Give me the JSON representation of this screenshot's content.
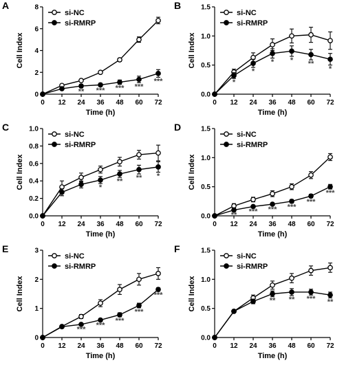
{
  "figure": {
    "panels": [
      {
        "id": "A",
        "label": "A"
      },
      {
        "id": "B",
        "label": "B"
      },
      {
        "id": "C",
        "label": "C"
      },
      {
        "id": "D",
        "label": "D"
      },
      {
        "id": "E",
        "label": "E"
      },
      {
        "id": "F",
        "label": "F"
      }
    ]
  },
  "chart_data": [
    {
      "panel": "A",
      "type": "line",
      "xlabel": "Time (h)",
      "ylabel": "Cell Index",
      "xlim": [
        0,
        72
      ],
      "ylim": [
        0,
        8
      ],
      "xticks": [
        0,
        12,
        24,
        36,
        48,
        60,
        72
      ],
      "yticks": [
        0,
        2,
        4,
        6,
        8
      ],
      "legend": "top-left",
      "x": [
        0,
        12,
        24,
        36,
        48,
        60,
        72
      ],
      "series": [
        {
          "name": "si-NC",
          "marker": "open-circle",
          "values": [
            0,
            0.8,
            1.25,
            2.0,
            3.15,
            5.0,
            6.75
          ],
          "err": [
            0,
            0.1,
            0.1,
            0.1,
            0.15,
            0.25,
            0.3
          ]
        },
        {
          "name": "si-RMRP",
          "marker": "filled-circle",
          "values": [
            0,
            0.5,
            0.75,
            0.85,
            1.1,
            1.35,
            1.9
          ],
          "err": [
            0,
            0.1,
            0.15,
            0.15,
            0.2,
            0.3,
            0.35
          ]
        }
      ],
      "annotations": [
        {
          "x": 24,
          "text": "**"
        },
        {
          "x": 36,
          "text": "***"
        },
        {
          "x": 48,
          "text": "***"
        },
        {
          "x": 60,
          "text": "***"
        },
        {
          "x": 72,
          "text": "***"
        }
      ]
    },
    {
      "panel": "B",
      "type": "line",
      "xlabel": "Time (h)",
      "ylabel": "Cell Index",
      "xlim": [
        0,
        72
      ],
      "ylim": [
        0,
        1.5
      ],
      "xticks": [
        0,
        12,
        24,
        36,
        48,
        60,
        72
      ],
      "yticks": [
        0.0,
        0.5,
        1.0,
        1.5
      ],
      "legend": "top-left",
      "x": [
        0,
        12,
        24,
        36,
        48,
        60,
        72
      ],
      "series": [
        {
          "name": "si-NC",
          "marker": "open-circle",
          "values": [
            0,
            0.38,
            0.63,
            0.85,
            1.0,
            1.02,
            0.92
          ],
          "err": [
            0,
            0.05,
            0.08,
            0.1,
            0.12,
            0.13,
            0.15
          ]
        },
        {
          "name": "si-RMRP",
          "marker": "filled-circle",
          "values": [
            0,
            0.32,
            0.53,
            0.7,
            0.74,
            0.68,
            0.6
          ],
          "err": [
            0,
            0.05,
            0.07,
            0.08,
            0.09,
            0.09,
            0.1
          ]
        }
      ],
      "annotations": [
        {
          "x": 12,
          "text": "*"
        },
        {
          "x": 24,
          "text": "*"
        },
        {
          "x": 36,
          "text": "*"
        },
        {
          "x": 48,
          "text": "*"
        },
        {
          "x": 60,
          "text": "**"
        },
        {
          "x": 72,
          "text": "*"
        }
      ]
    },
    {
      "panel": "C",
      "type": "line",
      "xlabel": "Time (h)",
      "ylabel": "Cell Index",
      "xlim": [
        0,
        72
      ],
      "ylim": [
        0,
        1.0
      ],
      "xticks": [
        0,
        12,
        24,
        36,
        48,
        60,
        72
      ],
      "yticks": [
        0.0,
        0.2,
        0.4,
        0.6,
        0.8,
        1.0
      ],
      "legend": "top-left",
      "x": [
        0,
        12,
        24,
        36,
        48,
        60,
        72
      ],
      "series": [
        {
          "name": "si-NC",
          "marker": "open-circle",
          "values": [
            0,
            0.33,
            0.44,
            0.53,
            0.62,
            0.7,
            0.72
          ],
          "err": [
            0,
            0.07,
            0.05,
            0.04,
            0.05,
            0.05,
            0.09
          ]
        },
        {
          "name": "si-RMRP",
          "marker": "filled-circle",
          "values": [
            0,
            0.27,
            0.36,
            0.41,
            0.48,
            0.53,
            0.56
          ],
          "err": [
            0,
            0.04,
            0.04,
            0.04,
            0.04,
            0.05,
            0.06
          ]
        }
      ],
      "annotations": [
        {
          "x": 36,
          "text": "*"
        },
        {
          "x": 48,
          "text": "**"
        },
        {
          "x": 60,
          "text": "**"
        },
        {
          "x": 72,
          "text": "*"
        }
      ]
    },
    {
      "panel": "D",
      "type": "line",
      "xlabel": "Time (h)",
      "ylabel": "Cell Index",
      "xlim": [
        0,
        72
      ],
      "ylim": [
        0,
        1.5
      ],
      "xticks": [
        0,
        12,
        24,
        36,
        48,
        60,
        72
      ],
      "yticks": [
        0.0,
        0.5,
        1.0,
        1.5
      ],
      "legend": "top-left",
      "x": [
        0,
        12,
        24,
        36,
        48,
        60,
        72
      ],
      "series": [
        {
          "name": "si-NC",
          "marker": "open-circle",
          "values": [
            0,
            0.17,
            0.28,
            0.38,
            0.5,
            0.7,
            1.01
          ],
          "err": [
            0,
            0.04,
            0.04,
            0.05,
            0.05,
            0.06,
            0.06
          ]
        },
        {
          "name": "si-RMRP",
          "marker": "filled-circle",
          "values": [
            0,
            0.1,
            0.16,
            0.2,
            0.25,
            0.34,
            0.5
          ],
          "err": [
            0,
            0.02,
            0.02,
            0.02,
            0.03,
            0.03,
            0.04
          ]
        }
      ],
      "annotations": [
        {
          "x": 12,
          "text": "**"
        },
        {
          "x": 24,
          "text": "***"
        },
        {
          "x": 36,
          "text": "***"
        },
        {
          "x": 48,
          "text": "***"
        },
        {
          "x": 60,
          "text": "***"
        },
        {
          "x": 72,
          "text": "***"
        }
      ]
    },
    {
      "panel": "E",
      "type": "line",
      "xlabel": "Time (h)",
      "ylabel": "Cell Index",
      "xlim": [
        0,
        72
      ],
      "ylim": [
        0,
        3
      ],
      "xticks": [
        0,
        12,
        24,
        36,
        48,
        60,
        72
      ],
      "yticks": [
        0,
        1,
        2,
        3
      ],
      "legend": "top-left",
      "x": [
        0,
        12,
        24,
        36,
        48,
        60,
        72
      ],
      "series": [
        {
          "name": "si-NC",
          "marker": "open-circle",
          "values": [
            0,
            0.38,
            0.72,
            1.18,
            1.65,
            2.0,
            2.2
          ],
          "err": [
            0,
            0.04,
            0.07,
            0.12,
            0.17,
            0.2,
            0.2
          ]
        },
        {
          "name": "si-RMRP",
          "marker": "filled-circle",
          "values": [
            0,
            0.37,
            0.45,
            0.6,
            0.78,
            1.1,
            1.65
          ],
          "err": [
            0,
            0.03,
            0.04,
            0.05,
            0.07,
            0.08,
            0.06
          ]
        }
      ],
      "annotations": [
        {
          "x": 24,
          "text": "***"
        },
        {
          "x": 36,
          "text": "***"
        },
        {
          "x": 48,
          "text": "***"
        },
        {
          "x": 60,
          "text": "***"
        },
        {
          "x": 72,
          "text": "***"
        }
      ]
    },
    {
      "panel": "F",
      "type": "line",
      "xlabel": "Time (h)",
      "ylabel": "Cell Index",
      "xlim": [
        0,
        72
      ],
      "ylim": [
        0,
        1.5
      ],
      "xticks": [
        0,
        12,
        24,
        36,
        48,
        60,
        72
      ],
      "yticks": [
        0.0,
        0.5,
        1.0,
        1.5
      ],
      "legend": "top-left",
      "x": [
        0,
        12,
        24,
        36,
        48,
        60,
        72
      ],
      "series": [
        {
          "name": "si-NC",
          "marker": "open-circle",
          "values": [
            0,
            0.45,
            0.68,
            0.9,
            1.02,
            1.15,
            1.2
          ],
          "err": [
            0,
            0.02,
            0.05,
            0.07,
            0.08,
            0.08,
            0.08
          ]
        },
        {
          "name": "si-RMRP",
          "marker": "filled-circle",
          "values": [
            0,
            0.45,
            0.62,
            0.75,
            0.78,
            0.78,
            0.73
          ],
          "err": [
            0,
            0.02,
            0.04,
            0.05,
            0.06,
            0.05,
            0.05
          ]
        }
      ],
      "annotations": [
        {
          "x": 36,
          "text": "**"
        },
        {
          "x": 48,
          "text": "**"
        },
        {
          "x": 60,
          "text": "***"
        },
        {
          "x": 72,
          "text": "**"
        }
      ]
    }
  ]
}
